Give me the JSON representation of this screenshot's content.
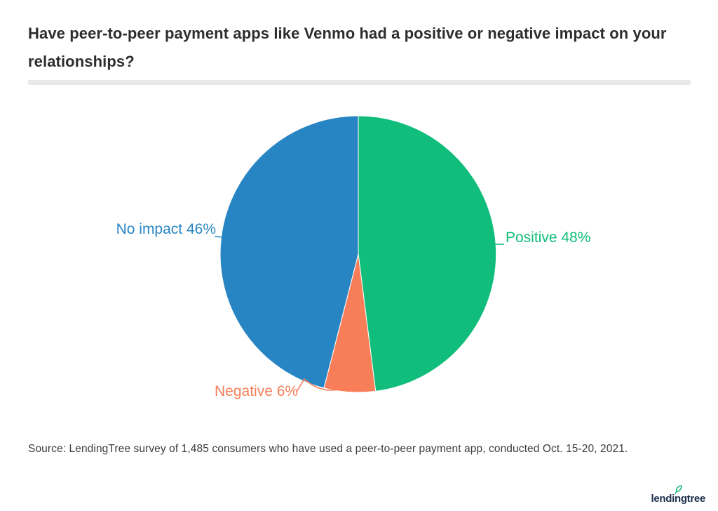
{
  "page": {
    "title": "Have peer-to-peer payment apps like Venmo had a positive or negative impact on your relationships?",
    "source": "Source: LendingTree survey of 1,485 consumers who have used a peer-to-peer payment app, conducted Oct. 15-20, 2021.",
    "brand": {
      "wordmark": "lendingtree",
      "navy": "#1b2f4b",
      "green": "#00b368"
    }
  },
  "chart_data": {
    "type": "pie",
    "title": "Have peer-to-peer payment apps like Venmo had a positive or negative impact on your relationships?",
    "slices": [
      {
        "label": "Positive",
        "value": 48,
        "display": "Positive 48%",
        "color": "#10bd7a"
      },
      {
        "label": "Negative",
        "value": 6,
        "display": "Negative 6%",
        "color": "#f77e58"
      },
      {
        "label": "No impact",
        "value": 46,
        "display": "No impact 46%",
        "color": "#2885c3"
      }
    ],
    "total": 100,
    "start_angle_deg": 0,
    "direction": "clockwise",
    "legend_position": "none",
    "labels_position": "outside",
    "label_color_matches_slice": true
  }
}
